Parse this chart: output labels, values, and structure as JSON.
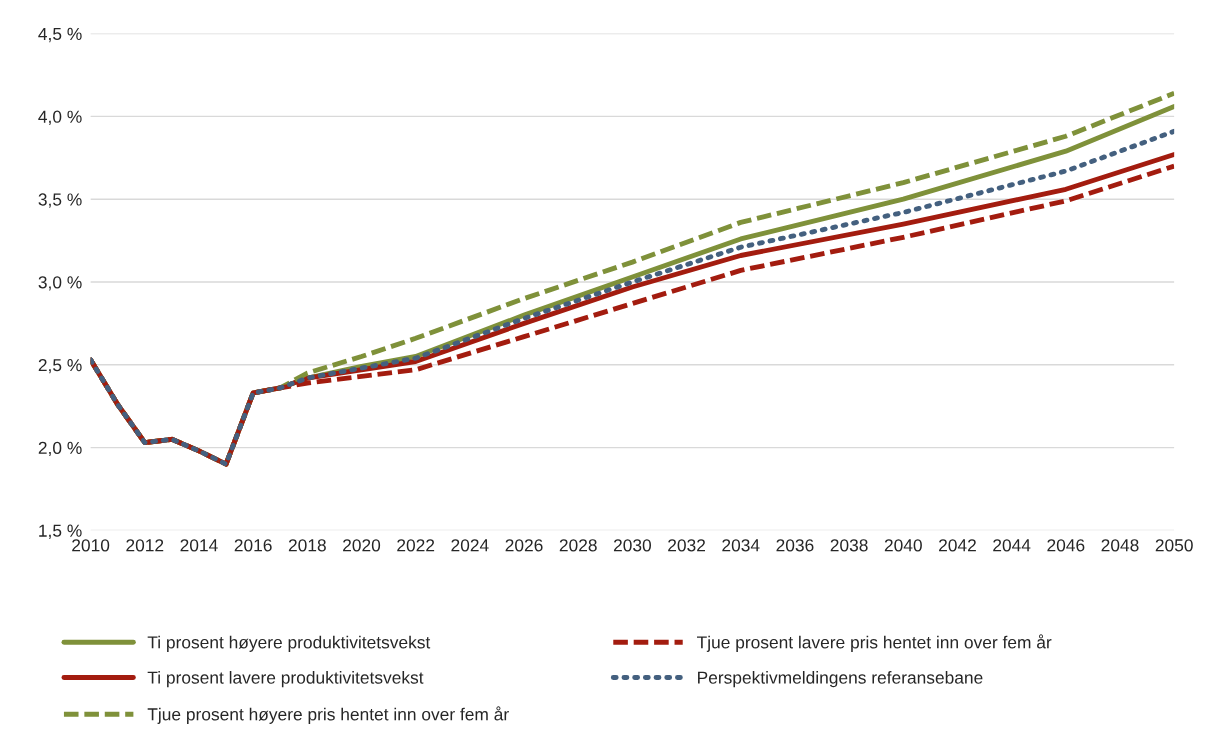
{
  "chart_data": {
    "type": "line",
    "x": [
      2010,
      2011,
      2012,
      2013,
      2014,
      2015,
      2016,
      2017,
      2018,
      2020,
      2022,
      2026,
      2030,
      2034,
      2040,
      2046,
      2050
    ],
    "series": [
      {
        "name": "Ti prosent høyere produktivitetsvekst",
        "color": "#7f913a",
        "line_style": "solid",
        "values": [
          2.53,
          2.26,
          2.03,
          2.05,
          1.98,
          1.9,
          2.33,
          2.36,
          2.42,
          2.49,
          2.55,
          2.8,
          3.03,
          3.26,
          3.5,
          3.79,
          4.06
        ]
      },
      {
        "name": "Ti prosent lavere produktivitetsvekst",
        "color": "#a31c0f",
        "line_style": "solid",
        "values": [
          2.53,
          2.26,
          2.03,
          2.05,
          1.98,
          1.9,
          2.33,
          2.36,
          2.42,
          2.47,
          2.52,
          2.75,
          2.97,
          3.16,
          3.35,
          3.56,
          3.77
        ]
      },
      {
        "name": "Tjue prosent høyere pris hentet inn over fem år",
        "color": "#7f913a",
        "line_style": "dashed",
        "values": [
          2.53,
          2.26,
          2.03,
          2.05,
          1.98,
          1.9,
          2.33,
          2.36,
          2.45,
          2.55,
          2.66,
          2.9,
          3.12,
          3.36,
          3.6,
          3.88,
          4.14
        ]
      },
      {
        "name": "Tjue prosent lavere pris hentet inn over fem år",
        "color": "#a31c0f",
        "line_style": "dashed",
        "values": [
          2.53,
          2.26,
          2.03,
          2.05,
          1.98,
          1.9,
          2.33,
          2.36,
          2.39,
          2.43,
          2.47,
          2.67,
          2.87,
          3.07,
          3.27,
          3.49,
          3.7
        ]
      },
      {
        "name": "Perspektivmeldingens referansebane",
        "color": "#44607f",
        "line_style": "dotted",
        "values": [
          2.53,
          2.26,
          2.03,
          2.05,
          1.98,
          1.9,
          2.33,
          2.36,
          2.42,
          2.48,
          2.54,
          2.78,
          3.0,
          3.21,
          3.42,
          3.67,
          3.91
        ]
      }
    ],
    "xlim": [
      2010,
      2050
    ],
    "xticks": [
      2010,
      2012,
      2014,
      2016,
      2018,
      2020,
      2022,
      2024,
      2026,
      2028,
      2030,
      2032,
      2034,
      2036,
      2038,
      2040,
      2042,
      2044,
      2046,
      2048,
      2050
    ],
    "ylim": [
      1.5,
      4.5
    ],
    "yticks": [
      {
        "value": 1.5,
        "label": "1,5 %"
      },
      {
        "value": 2.0,
        "label": "2,0 %"
      },
      {
        "value": 2.5,
        "label": "2,5 %"
      },
      {
        "value": 3.0,
        "label": "3,0 %"
      },
      {
        "value": 3.5,
        "label": "3,5 %"
      },
      {
        "value": 4.0,
        "label": "4,0 %"
      },
      {
        "value": 4.5,
        "label": "4,5 %"
      }
    ],
    "grid": "y",
    "legend": "bottom"
  }
}
